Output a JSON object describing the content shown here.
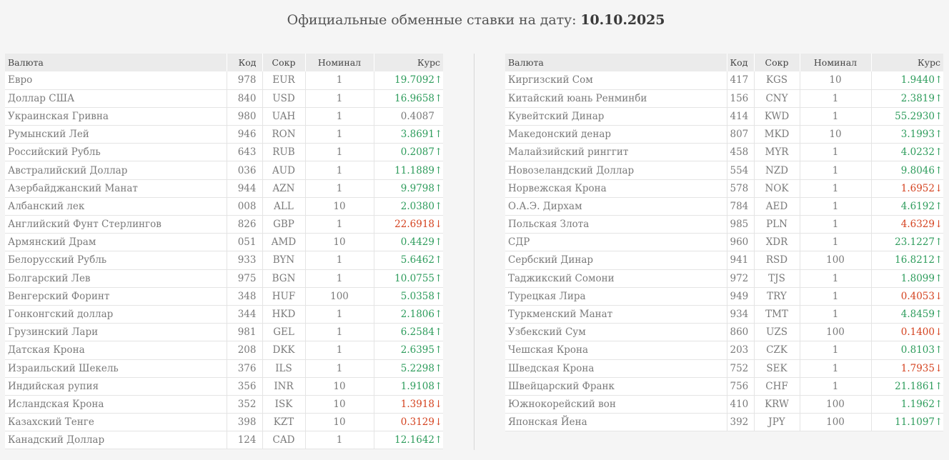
{
  "title": {
    "text": "Официальные обменные ставки на дату:",
    "date": "10.10.2025"
  },
  "headers": {
    "name": "Валюта",
    "code": "Код",
    "abbr": "Сокр",
    "nominal": "Номинал",
    "rate": "Курс"
  },
  "colors": {
    "up": "#2e9c5c",
    "down": "#d4421f",
    "neutral": "#7a7a7a"
  },
  "left": [
    {
      "name": "Евро",
      "code": "978",
      "abbr": "EUR",
      "nominal": "1",
      "rate": "19.7092",
      "trend": "up"
    },
    {
      "name": "Доллар США",
      "code": "840",
      "abbr": "USD",
      "nominal": "1",
      "rate": "16.9658",
      "trend": "up"
    },
    {
      "name": "Украинская Гривна",
      "code": "980",
      "abbr": "UAH",
      "nominal": "1",
      "rate": "0.4087",
      "trend": "flat"
    },
    {
      "name": "Румынский Лей",
      "code": "946",
      "abbr": "RON",
      "nominal": "1",
      "rate": "3.8691",
      "trend": "up"
    },
    {
      "name": "Российский Рубль",
      "code": "643",
      "abbr": "RUB",
      "nominal": "1",
      "rate": "0.2087",
      "trend": "up"
    },
    {
      "name": "Австралийский Доллар",
      "code": "036",
      "abbr": "AUD",
      "nominal": "1",
      "rate": "11.1889",
      "trend": "up"
    },
    {
      "name": "Азербайджанский Манат",
      "code": "944",
      "abbr": "AZN",
      "nominal": "1",
      "rate": "9.9798",
      "trend": "up"
    },
    {
      "name": "Албанский лек",
      "code": "008",
      "abbr": "ALL",
      "nominal": "10",
      "rate": "2.0380",
      "trend": "up"
    },
    {
      "name": "Английский Фунт Стерлингов",
      "code": "826",
      "abbr": "GBP",
      "nominal": "1",
      "rate": "22.6918",
      "trend": "down"
    },
    {
      "name": "Армянский Драм",
      "code": "051",
      "abbr": "AMD",
      "nominal": "10",
      "rate": "0.4429",
      "trend": "up"
    },
    {
      "name": "Белорусский Рубль",
      "code": "933",
      "abbr": "BYN",
      "nominal": "1",
      "rate": "5.6462",
      "trend": "up"
    },
    {
      "name": "Болгарский Лев",
      "code": "975",
      "abbr": "BGN",
      "nominal": "1",
      "rate": "10.0755",
      "trend": "up"
    },
    {
      "name": "Венгерский Форинт",
      "code": "348",
      "abbr": "HUF",
      "nominal": "100",
      "rate": "5.0358",
      "trend": "up"
    },
    {
      "name": "Гонконгский доллар",
      "code": "344",
      "abbr": "HKD",
      "nominal": "1",
      "rate": "2.1806",
      "trend": "up"
    },
    {
      "name": "Грузинский Лари",
      "code": "981",
      "abbr": "GEL",
      "nominal": "1",
      "rate": "6.2584",
      "trend": "up"
    },
    {
      "name": "Датская Крона",
      "code": "208",
      "abbr": "DKK",
      "nominal": "1",
      "rate": "2.6395",
      "trend": "up"
    },
    {
      "name": "Израильский Шекель",
      "code": "376",
      "abbr": "ILS",
      "nominal": "1",
      "rate": "5.2298",
      "trend": "up"
    },
    {
      "name": "Индийская рупия",
      "code": "356",
      "abbr": "INR",
      "nominal": "10",
      "rate": "1.9108",
      "trend": "up"
    },
    {
      "name": "Исландская Крона",
      "code": "352",
      "abbr": "ISK",
      "nominal": "10",
      "rate": "1.3918",
      "trend": "down"
    },
    {
      "name": "Казахский Тенге",
      "code": "398",
      "abbr": "KZT",
      "nominal": "10",
      "rate": "0.3129",
      "trend": "down"
    },
    {
      "name": "Канадский Доллар",
      "code": "124",
      "abbr": "CAD",
      "nominal": "1",
      "rate": "12.1642",
      "trend": "up"
    }
  ],
  "right": [
    {
      "name": "Киргизский Сом",
      "code": "417",
      "abbr": "KGS",
      "nominal": "10",
      "rate": "1.9440",
      "trend": "up"
    },
    {
      "name": "Китайский юань Ренминби",
      "code": "156",
      "abbr": "CNY",
      "nominal": "1",
      "rate": "2.3819",
      "trend": "up"
    },
    {
      "name": "Кувейтский Динар",
      "code": "414",
      "abbr": "KWD",
      "nominal": "1",
      "rate": "55.2930",
      "trend": "up"
    },
    {
      "name": "Македонский денар",
      "code": "807",
      "abbr": "MKD",
      "nominal": "10",
      "rate": "3.1993",
      "trend": "up"
    },
    {
      "name": "Малайзийский ринггит",
      "code": "458",
      "abbr": "MYR",
      "nominal": "1",
      "rate": "4.0232",
      "trend": "up"
    },
    {
      "name": "Новозеландский Доллар",
      "code": "554",
      "abbr": "NZD",
      "nominal": "1",
      "rate": "9.8046",
      "trend": "up"
    },
    {
      "name": "Норвежская Крона",
      "code": "578",
      "abbr": "NOK",
      "nominal": "1",
      "rate": "1.6952",
      "trend": "down"
    },
    {
      "name": "О.А.Э. Дирхам",
      "code": "784",
      "abbr": "AED",
      "nominal": "1",
      "rate": "4.6192",
      "trend": "up"
    },
    {
      "name": "Польская Злота",
      "code": "985",
      "abbr": "PLN",
      "nominal": "1",
      "rate": "4.6329",
      "trend": "down"
    },
    {
      "name": "СДР",
      "code": "960",
      "abbr": "XDR",
      "nominal": "1",
      "rate": "23.1227",
      "trend": "up"
    },
    {
      "name": "Сербский Динар",
      "code": "941",
      "abbr": "RSD",
      "nominal": "100",
      "rate": "16.8212",
      "trend": "up"
    },
    {
      "name": "Таджикский Сомони",
      "code": "972",
      "abbr": "TJS",
      "nominal": "1",
      "rate": "1.8099",
      "trend": "up"
    },
    {
      "name": "Турецкая Лира",
      "code": "949",
      "abbr": "TRY",
      "nominal": "1",
      "rate": "0.4053",
      "trend": "down"
    },
    {
      "name": "Туркменский Манат",
      "code": "934",
      "abbr": "TMT",
      "nominal": "1",
      "rate": "4.8459",
      "trend": "up"
    },
    {
      "name": "Узбекский Сум",
      "code": "860",
      "abbr": "UZS",
      "nominal": "100",
      "rate": "0.1400",
      "trend": "down"
    },
    {
      "name": "Чешская Крона",
      "code": "203",
      "abbr": "CZK",
      "nominal": "1",
      "rate": "0.8103",
      "trend": "up"
    },
    {
      "name": "Шведская Крона",
      "code": "752",
      "abbr": "SEK",
      "nominal": "1",
      "rate": "1.7935",
      "trend": "down"
    },
    {
      "name": "Швейцарский Франк",
      "code": "756",
      "abbr": "CHF",
      "nominal": "1",
      "rate": "21.1861",
      "trend": "up"
    },
    {
      "name": "Южнокорейский вон",
      "code": "410",
      "abbr": "KRW",
      "nominal": "100",
      "rate": "1.1962",
      "trend": "up"
    },
    {
      "name": "Японская Йена",
      "code": "392",
      "abbr": "JPY",
      "nominal": "100",
      "rate": "11.1097",
      "trend": "up"
    }
  ]
}
